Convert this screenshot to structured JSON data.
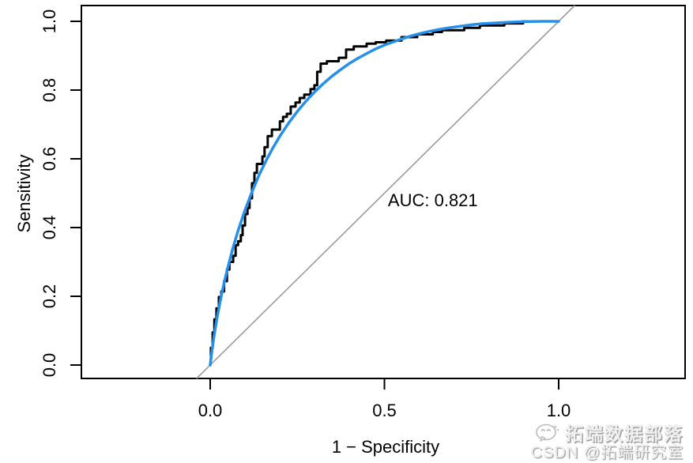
{
  "figure": {
    "background": "#ffffff",
    "watermark": {
      "line1": "拓端数据部落",
      "line2": "CSDN @拓端研究室",
      "icon": "wechat-icon",
      "color": "#b8b8b8"
    }
  },
  "chart_data": {
    "type": "line",
    "title": "",
    "xlabel": "1 − Specificity",
    "ylabel": "Sensitivity",
    "xlim": [
      0,
      1
    ],
    "ylim": [
      0,
      1
    ],
    "grid": false,
    "legend": null,
    "auc": 0.821,
    "annotation": {
      "text": "AUC: 0.821",
      "x": 0.639,
      "y": 0.48
    },
    "x_ticks": [
      0,
      0.5,
      1.0
    ],
    "x_tick_labels": [
      "0.0",
      "0.5",
      "1.0"
    ],
    "y_ticks": [
      0,
      0.2,
      0.4,
      0.6,
      0.8,
      1.0
    ],
    "y_tick_labels": [
      "0.0",
      "0.2",
      "0.4",
      "0.6",
      "0.8",
      "1.0"
    ],
    "colors": {
      "empirical": "#000000",
      "smoothed": "#2490ea",
      "reference": "#9c9c9c"
    },
    "series": [
      {
        "name": "empirical-roc",
        "style": "step",
        "color": "#000000",
        "width": 3,
        "points": [
          [
            0.0,
            0.0
          ],
          [
            0.002,
            0.018
          ],
          [
            0.002,
            0.05
          ],
          [
            0.007,
            0.05
          ],
          [
            0.007,
            0.095
          ],
          [
            0.012,
            0.095
          ],
          [
            0.012,
            0.133
          ],
          [
            0.018,
            0.133
          ],
          [
            0.018,
            0.165
          ],
          [
            0.025,
            0.165
          ],
          [
            0.025,
            0.198
          ],
          [
            0.032,
            0.198
          ],
          [
            0.032,
            0.214
          ],
          [
            0.04,
            0.214
          ],
          [
            0.04,
            0.244
          ],
          [
            0.048,
            0.244
          ],
          [
            0.048,
            0.278
          ],
          [
            0.055,
            0.278
          ],
          [
            0.055,
            0.3
          ],
          [
            0.066,
            0.3
          ],
          [
            0.066,
            0.318
          ],
          [
            0.073,
            0.318
          ],
          [
            0.073,
            0.349
          ],
          [
            0.08,
            0.349
          ],
          [
            0.08,
            0.36
          ],
          [
            0.088,
            0.36
          ],
          [
            0.088,
            0.378
          ],
          [
            0.093,
            0.378
          ],
          [
            0.093,
            0.406
          ],
          [
            0.1,
            0.406
          ],
          [
            0.1,
            0.439
          ],
          [
            0.107,
            0.439
          ],
          [
            0.107,
            0.457
          ],
          [
            0.113,
            0.457
          ],
          [
            0.113,
            0.485
          ],
          [
            0.12,
            0.485
          ],
          [
            0.12,
            0.529
          ],
          [
            0.127,
            0.529
          ],
          [
            0.127,
            0.559
          ],
          [
            0.134,
            0.559
          ],
          [
            0.134,
            0.585
          ],
          [
            0.15,
            0.585
          ],
          [
            0.15,
            0.607
          ],
          [
            0.156,
            0.607
          ],
          [
            0.156,
            0.634
          ],
          [
            0.165,
            0.634
          ],
          [
            0.165,
            0.666
          ],
          [
            0.177,
            0.666
          ],
          [
            0.177,
            0.685
          ],
          [
            0.2,
            0.685
          ],
          [
            0.2,
            0.709
          ],
          [
            0.209,
            0.709
          ],
          [
            0.209,
            0.722
          ],
          [
            0.22,
            0.722
          ],
          [
            0.22,
            0.731
          ],
          [
            0.231,
            0.731
          ],
          [
            0.231,
            0.752
          ],
          [
            0.245,
            0.752
          ],
          [
            0.245,
            0.764
          ],
          [
            0.257,
            0.764
          ],
          [
            0.257,
            0.777
          ],
          [
            0.27,
            0.777
          ],
          [
            0.27,
            0.787
          ],
          [
            0.288,
            0.787
          ],
          [
            0.288,
            0.803
          ],
          [
            0.299,
            0.803
          ],
          [
            0.299,
            0.814
          ],
          [
            0.307,
            0.814
          ],
          [
            0.307,
            0.853
          ],
          [
            0.317,
            0.853
          ],
          [
            0.317,
            0.877
          ],
          [
            0.335,
            0.877
          ],
          [
            0.335,
            0.884
          ],
          [
            0.369,
            0.884
          ],
          [
            0.369,
            0.894
          ],
          [
            0.39,
            0.894
          ],
          [
            0.39,
            0.918
          ],
          [
            0.412,
            0.918
          ],
          [
            0.412,
            0.927
          ],
          [
            0.449,
            0.927
          ],
          [
            0.449,
            0.935
          ],
          [
            0.475,
            0.935
          ],
          [
            0.475,
            0.939
          ],
          [
            0.505,
            0.939
          ],
          [
            0.505,
            0.944
          ],
          [
            0.549,
            0.944
          ],
          [
            0.549,
            0.954
          ],
          [
            0.594,
            0.954
          ],
          [
            0.594,
            0.962
          ],
          [
            0.639,
            0.962
          ],
          [
            0.639,
            0.969
          ],
          [
            0.665,
            0.969
          ],
          [
            0.665,
            0.974
          ],
          [
            0.729,
            0.974
          ],
          [
            0.729,
            0.981
          ],
          [
            0.774,
            0.981
          ],
          [
            0.774,
            0.988
          ],
          [
            0.844,
            0.988
          ],
          [
            0.844,
            0.994
          ],
          [
            0.898,
            0.994
          ],
          [
            0.898,
            1.0
          ],
          [
            1.0,
            1.0
          ]
        ]
      },
      {
        "name": "smoothed-roc",
        "style": "smooth",
        "color": "#2490ea",
        "width": 3.5,
        "points": [
          [
            0.0,
            0.0
          ],
          [
            0.005,
            0.041
          ],
          [
            0.01,
            0.077
          ],
          [
            0.02,
            0.139
          ],
          [
            0.03,
            0.192
          ],
          [
            0.04,
            0.239
          ],
          [
            0.05,
            0.282
          ],
          [
            0.065,
            0.34
          ],
          [
            0.08,
            0.391
          ],
          [
            0.1,
            0.451
          ],
          [
            0.12,
            0.504
          ],
          [
            0.14,
            0.552
          ],
          [
            0.16,
            0.594
          ],
          [
            0.18,
            0.632
          ],
          [
            0.2,
            0.666
          ],
          [
            0.225,
            0.704
          ],
          [
            0.25,
            0.738
          ],
          [
            0.275,
            0.768
          ],
          [
            0.3,
            0.795
          ],
          [
            0.325,
            0.819
          ],
          [
            0.35,
            0.841
          ],
          [
            0.375,
            0.86
          ],
          [
            0.4,
            0.878
          ],
          [
            0.425,
            0.893
          ],
          [
            0.45,
            0.907
          ],
          [
            0.475,
            0.92
          ],
          [
            0.5,
            0.931
          ],
          [
            0.525,
            0.94
          ],
          [
            0.55,
            0.949
          ],
          [
            0.575,
            0.957
          ],
          [
            0.6,
            0.964
          ],
          [
            0.63,
            0.971
          ],
          [
            0.66,
            0.977
          ],
          [
            0.69,
            0.982
          ],
          [
            0.72,
            0.986
          ],
          [
            0.75,
            0.99
          ],
          [
            0.78,
            0.993
          ],
          [
            0.81,
            0.995
          ],
          [
            0.85,
            0.997
          ],
          [
            0.9,
            0.999
          ],
          [
            0.95,
            1.0
          ],
          [
            1.0,
            1.0
          ]
        ]
      },
      {
        "name": "chance-line",
        "style": "reference",
        "color": "#9c9c9c",
        "width": 1.6,
        "from": [
          0,
          0
        ],
        "to": [
          1,
          1
        ]
      }
    ]
  }
}
